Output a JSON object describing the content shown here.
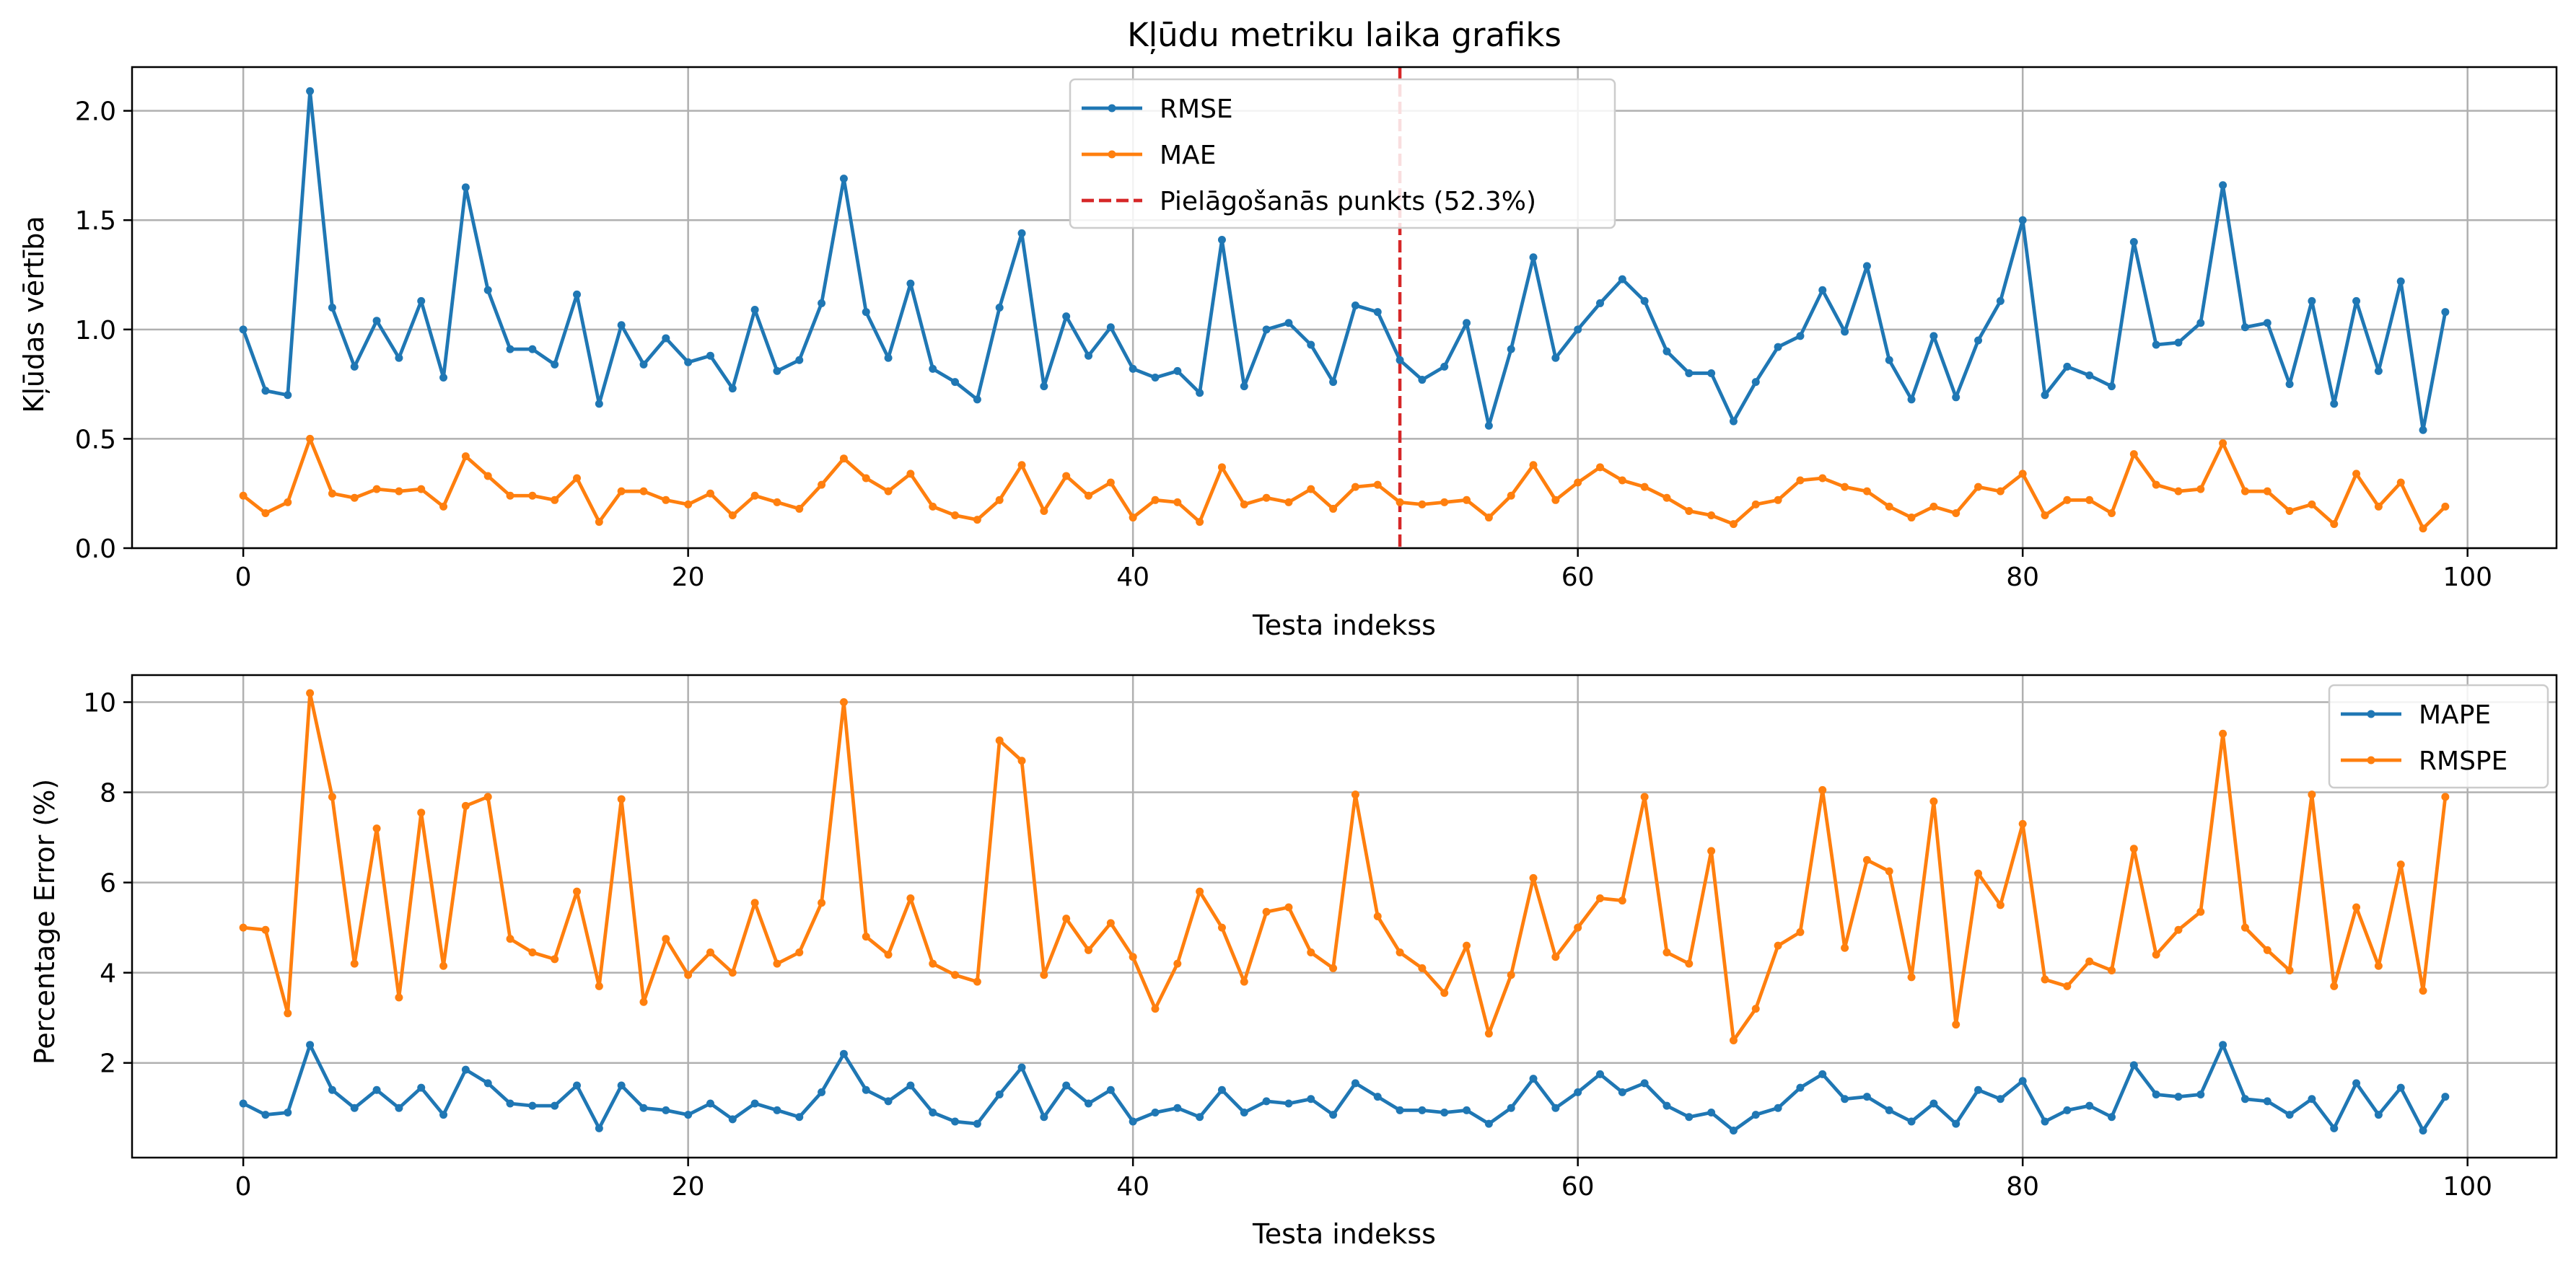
{
  "chart_data": [
    {
      "type": "line",
      "title": "Kļūdu metriku laika grafiks",
      "xlabel": "Testa indekss",
      "ylabel": "Kļūdas vērtība",
      "xlim": [
        -5,
        104
      ],
      "ylim": [
        0,
        2.2
      ],
      "xticks": [
        0,
        20,
        40,
        60,
        80,
        100
      ],
      "yticks": [
        0.0,
        0.5,
        1.0,
        1.5,
        2.0
      ],
      "ytick_labels": [
        "0.0",
        "0.5",
        "1.0",
        "1.5",
        "2.0"
      ],
      "grid": true,
      "legend_position": "top-center",
      "adaptation_point": {
        "x": 52,
        "label": "Pielāgošanās punkts (52.3%)",
        "color": "#d62728",
        "style": "dashed"
      },
      "series": [
        {
          "name": "RMSE",
          "color": "#1f77b4",
          "values": [
            1.0,
            0.72,
            0.7,
            2.09,
            1.1,
            0.83,
            1.04,
            0.87,
            1.13,
            0.78,
            1.65,
            1.18,
            0.91,
            0.91,
            0.84,
            1.16,
            0.66,
            1.02,
            0.84,
            0.96,
            0.85,
            0.88,
            0.73,
            1.09,
            0.81,
            0.86,
            1.12,
            1.69,
            1.08,
            0.87,
            1.21,
            0.82,
            0.76,
            0.68,
            1.1,
            1.44,
            0.74,
            1.06,
            0.88,
            1.01,
            0.82,
            0.78,
            0.81,
            0.71,
            1.41,
            0.74,
            1.0,
            1.03,
            0.93,
            0.76,
            1.11,
            1.08,
            0.86,
            0.77,
            0.83,
            1.03,
            0.56,
            0.91,
            1.33,
            0.87,
            1.0,
            1.12,
            1.23,
            1.13,
            0.9,
            0.8,
            0.8,
            0.58,
            0.76,
            0.92,
            0.97,
            1.18,
            0.99,
            1.29,
            0.86,
            0.68,
            0.97,
            0.69,
            0.95,
            1.13,
            1.5,
            0.7,
            0.83,
            0.79,
            0.74,
            1.4,
            0.93,
            0.94,
            1.03,
            1.66,
            1.01,
            1.03,
            0.75,
            1.13,
            0.66,
            1.13,
            0.81,
            1.22,
            0.54,
            1.08
          ]
        },
        {
          "name": "MAE",
          "color": "#ff7f0e",
          "values": [
            0.24,
            0.16,
            0.21,
            0.5,
            0.25,
            0.23,
            0.27,
            0.26,
            0.27,
            0.19,
            0.42,
            0.33,
            0.24,
            0.24,
            0.22,
            0.32,
            0.12,
            0.26,
            0.26,
            0.22,
            0.2,
            0.25,
            0.15,
            0.24,
            0.21,
            0.18,
            0.29,
            0.41,
            0.32,
            0.26,
            0.34,
            0.19,
            0.15,
            0.13,
            0.22,
            0.38,
            0.17,
            0.33,
            0.24,
            0.3,
            0.14,
            0.22,
            0.21,
            0.12,
            0.37,
            0.2,
            0.23,
            0.21,
            0.27,
            0.18,
            0.28,
            0.29,
            0.21,
            0.2,
            0.21,
            0.22,
            0.14,
            0.24,
            0.38,
            0.22,
            0.3,
            0.37,
            0.31,
            0.28,
            0.23,
            0.17,
            0.15,
            0.11,
            0.2,
            0.22,
            0.31,
            0.32,
            0.28,
            0.26,
            0.19,
            0.14,
            0.19,
            0.16,
            0.28,
            0.26,
            0.34,
            0.15,
            0.22,
            0.22,
            0.16,
            0.43,
            0.29,
            0.26,
            0.27,
            0.48,
            0.26,
            0.26,
            0.17,
            0.2,
            0.11,
            0.34,
            0.19,
            0.3,
            0.09,
            0.19
          ]
        }
      ]
    },
    {
      "type": "line",
      "title": "",
      "xlabel": "Testa indekss",
      "ylabel": "Percentage Error (%)",
      "xlim": [
        -5,
        104
      ],
      "ylim": [
        -0.1,
        10.6
      ],
      "xticks": [
        0,
        20,
        40,
        60,
        80,
        100
      ],
      "yticks": [
        2,
        4,
        6,
        8,
        10
      ],
      "ytick_labels": [
        "2",
        "4",
        "6",
        "8",
        "10"
      ],
      "grid": true,
      "legend_position": "top-right",
      "series": [
        {
          "name": "MAPE",
          "color": "#1f77b4",
          "values": [
            1.1,
            0.85,
            0.9,
            2.4,
            1.4,
            1.0,
            1.4,
            1.0,
            1.45,
            0.85,
            1.85,
            1.55,
            1.1,
            1.05,
            1.05,
            1.5,
            0.55,
            1.5,
            1.0,
            0.95,
            0.85,
            1.1,
            0.75,
            1.1,
            0.95,
            0.8,
            1.35,
            2.2,
            1.4,
            1.15,
            1.5,
            0.9,
            0.7,
            0.65,
            1.3,
            1.9,
            0.8,
            1.5,
            1.1,
            1.4,
            0.7,
            0.9,
            1.0,
            0.8,
            1.4,
            0.9,
            1.15,
            1.1,
            1.2,
            0.85,
            1.55,
            1.25,
            0.95,
            0.95,
            0.9,
            0.95,
            0.65,
            1.0,
            1.65,
            1.0,
            1.35,
            1.75,
            1.35,
            1.55,
            1.05,
            0.8,
            0.9,
            0.5,
            0.85,
            1.0,
            1.45,
            1.75,
            1.2,
            1.25,
            0.95,
            0.7,
            1.1,
            0.65,
            1.4,
            1.2,
            1.6,
            0.7,
            0.95,
            1.05,
            0.8,
            1.95,
            1.3,
            1.25,
            1.3,
            2.4,
            1.2,
            1.15,
            0.85,
            1.2,
            0.55,
            1.55,
            0.85,
            1.45,
            0.5,
            1.25
          ]
        },
        {
          "name": "RMSPE",
          "color": "#ff7f0e",
          "values": [
            5.0,
            4.95,
            3.1,
            10.2,
            7.9,
            4.2,
            7.2,
            3.45,
            7.55,
            4.15,
            7.7,
            7.9,
            4.75,
            4.45,
            4.3,
            5.8,
            3.7,
            7.85,
            3.35,
            4.75,
            3.95,
            4.45,
            4.0,
            5.55,
            4.2,
            4.45,
            5.55,
            10.0,
            4.8,
            4.4,
            5.65,
            4.2,
            3.95,
            3.8,
            9.15,
            8.7,
            3.95,
            5.2,
            4.5,
            5.1,
            4.35,
            3.2,
            4.2,
            5.8,
            5.0,
            3.8,
            5.35,
            5.45,
            4.45,
            4.1,
            7.95,
            5.25,
            4.45,
            4.1,
            3.55,
            4.6,
            2.65,
            3.95,
            6.1,
            4.35,
            5.0,
            5.65,
            5.6,
            7.9,
            4.45,
            4.2,
            6.7,
            2.5,
            3.2,
            4.6,
            4.9,
            8.05,
            4.55,
            6.5,
            6.25,
            3.9,
            7.8,
            2.85,
            6.2,
            5.5,
            7.3,
            3.85,
            3.7,
            4.25,
            4.05,
            6.75,
            4.4,
            4.95,
            5.35,
            9.3,
            5.0,
            4.5,
            4.05,
            7.95,
            3.7,
            5.45,
            4.15,
            6.4,
            3.6,
            7.9
          ]
        }
      ]
    }
  ]
}
